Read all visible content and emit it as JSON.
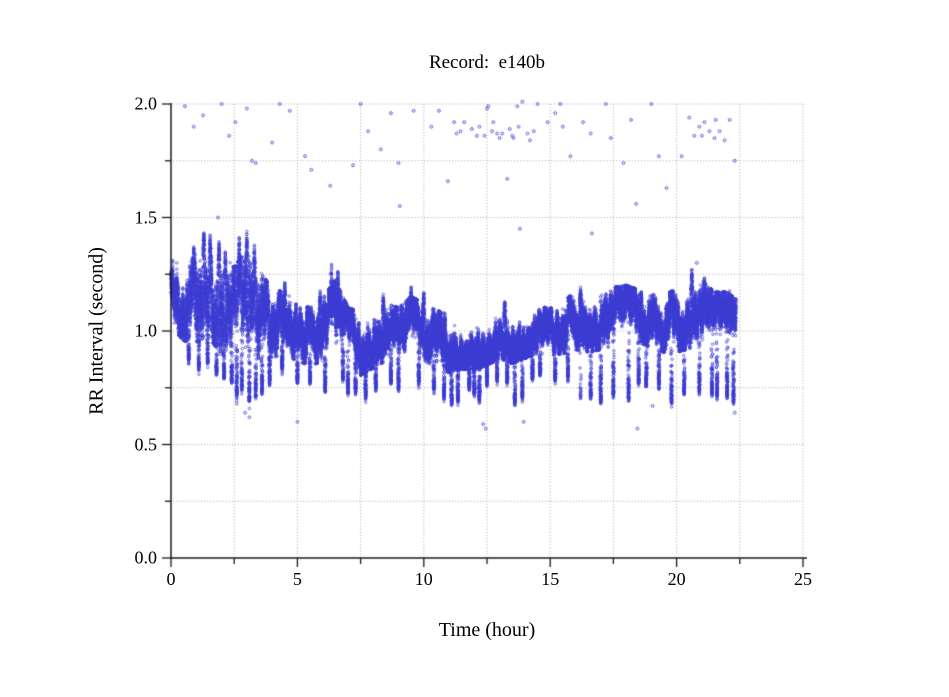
{
  "chart_data": {
    "type": "scatter",
    "title": "Record:  e140b",
    "xlabel": "Time (hour)",
    "ylabel": "RR Interval (second)",
    "xlim": [
      0,
      25
    ],
    "ylim": [
      0.0,
      2.0
    ],
    "data_end_hour": 22.35,
    "x_axis": {
      "ticks": [
        {
          "label": "0",
          "value": 0
        },
        {
          "label": "5",
          "value": 5
        },
        {
          "label": "10",
          "value": 10
        },
        {
          "label": "15",
          "value": 15
        },
        {
          "label": "20",
          "value": 20
        },
        {
          "label": "25",
          "value": 25
        }
      ],
      "minor_tick_step": 2.5,
      "grid_step": 2.5
    },
    "y_axis": {
      "ticks": [
        {
          "label": "0.0",
          "value": 0.0
        },
        {
          "label": "0.5",
          "value": 0.5
        },
        {
          "label": "1.0",
          "value": 1.0
        },
        {
          "label": "1.5",
          "value": 1.5
        },
        {
          "label": "2.0",
          "value": 2.0
        }
      ],
      "minor_tick_step": 0.25,
      "grid_step": 0.25
    },
    "grid": {
      "style": "dotted",
      "on": true
    },
    "legend": "none",
    "marker": {
      "shape": "open-circle",
      "radius_px": 1.25
    },
    "colors": {
      "marker": "#3C3CD2",
      "grid": "#A9A9A9",
      "axis": "#1A1A1A",
      "text": "#000000"
    },
    "band_profile": [
      [
        0.0,
        1.18,
        0.13
      ],
      [
        0.5,
        1.15,
        0.16
      ],
      [
        1.0,
        1.18,
        0.19
      ],
      [
        1.5,
        1.22,
        0.2
      ],
      [
        2.0,
        1.13,
        0.2
      ],
      [
        2.5,
        1.08,
        0.18
      ],
      [
        3.0,
        1.15,
        0.2
      ],
      [
        3.5,
        1.08,
        0.17
      ],
      [
        4.0,
        1.04,
        0.13
      ],
      [
        4.5,
        1.04,
        0.12
      ],
      [
        5.0,
        1.0,
        0.11
      ],
      [
        5.5,
        0.98,
        0.11
      ],
      [
        6.0,
        1.01,
        0.12
      ],
      [
        6.5,
        1.07,
        0.14
      ],
      [
        7.0,
        0.97,
        0.12
      ],
      [
        7.5,
        0.95,
        0.12
      ],
      [
        8.0,
        0.97,
        0.11
      ],
      [
        8.5,
        1.0,
        0.11
      ],
      [
        9.0,
        0.98,
        0.11
      ],
      [
        9.5,
        1.02,
        0.12
      ],
      [
        10.0,
        1.0,
        0.11
      ],
      [
        10.5,
        0.97,
        0.11
      ],
      [
        11.0,
        0.95,
        0.11
      ],
      [
        11.5,
        0.94,
        0.09
      ],
      [
        12.0,
        0.95,
        0.1
      ],
      [
        12.5,
        0.97,
        0.1
      ],
      [
        13.0,
        1.0,
        0.1
      ],
      [
        13.5,
        0.99,
        0.11
      ],
      [
        14.0,
        1.0,
        0.1
      ],
      [
        14.5,
        1.01,
        0.09
      ],
      [
        15.0,
        1.0,
        0.09
      ],
      [
        15.5,
        1.02,
        0.1
      ],
      [
        16.0,
        1.05,
        0.11
      ],
      [
        16.5,
        1.04,
        0.11
      ],
      [
        17.0,
        1.05,
        0.11
      ],
      [
        17.5,
        1.07,
        0.11
      ],
      [
        18.0,
        1.08,
        0.11
      ],
      [
        18.5,
        1.07,
        0.1
      ],
      [
        19.0,
        1.06,
        0.11
      ],
      [
        19.5,
        1.04,
        0.11
      ],
      [
        20.0,
        1.05,
        0.12
      ],
      [
        20.5,
        1.08,
        0.13
      ],
      [
        21.0,
        1.09,
        0.12
      ],
      [
        21.5,
        1.05,
        0.11
      ],
      [
        22.0,
        1.04,
        0.12
      ],
      [
        22.35,
        1.02,
        0.11
      ]
    ],
    "peaks": [
      [
        0.9,
        1.38
      ],
      [
        1.3,
        1.45
      ],
      [
        1.55,
        1.43
      ],
      [
        1.9,
        1.4
      ],
      [
        2.15,
        1.36
      ],
      [
        2.7,
        1.42
      ],
      [
        3.0,
        1.44
      ],
      [
        3.3,
        1.38
      ],
      [
        4.5,
        1.22
      ],
      [
        5.9,
        1.18
      ],
      [
        6.35,
        1.3
      ],
      [
        6.6,
        1.28
      ],
      [
        8.4,
        1.17
      ],
      [
        9.5,
        1.2
      ],
      [
        10.0,
        1.18
      ],
      [
        13.2,
        1.14
      ],
      [
        16.2,
        1.2
      ],
      [
        17.8,
        1.2
      ],
      [
        18.6,
        1.18
      ],
      [
        20.6,
        1.28
      ],
      [
        21.1,
        1.24
      ],
      [
        22.1,
        1.18
      ]
    ],
    "dips": [
      [
        0.7,
        0.88
      ],
      [
        1.1,
        0.84
      ],
      [
        1.45,
        0.86
      ],
      [
        1.8,
        0.82
      ],
      [
        2.1,
        0.8
      ],
      [
        2.4,
        0.78
      ],
      [
        2.6,
        0.72
      ],
      [
        2.8,
        0.75
      ],
      [
        3.1,
        0.7
      ],
      [
        3.35,
        0.72
      ],
      [
        3.6,
        0.74
      ],
      [
        3.9,
        0.78
      ],
      [
        4.4,
        0.84
      ],
      [
        5.0,
        0.78
      ],
      [
        5.5,
        0.78
      ],
      [
        6.1,
        0.75
      ],
      [
        6.8,
        0.8
      ],
      [
        7.0,
        0.74
      ],
      [
        7.3,
        0.74
      ],
      [
        7.7,
        0.72
      ],
      [
        8.1,
        0.75
      ],
      [
        8.7,
        0.78
      ],
      [
        9.0,
        0.76
      ],
      [
        9.8,
        0.78
      ],
      [
        10.4,
        0.74
      ],
      [
        10.8,
        0.71
      ],
      [
        11.1,
        0.69
      ],
      [
        11.35,
        0.7
      ],
      [
        11.8,
        0.76
      ],
      [
        12.0,
        0.73
      ],
      [
        12.2,
        0.7
      ],
      [
        12.5,
        0.78
      ],
      [
        12.9,
        0.79
      ],
      [
        13.3,
        0.78
      ],
      [
        13.6,
        0.69
      ],
      [
        13.9,
        0.71
      ],
      [
        14.3,
        0.8
      ],
      [
        14.6,
        0.81
      ],
      [
        15.2,
        0.79
      ],
      [
        15.7,
        0.8
      ],
      [
        16.2,
        0.71
      ],
      [
        16.6,
        0.71
      ],
      [
        17.0,
        0.69
      ],
      [
        17.5,
        0.73
      ],
      [
        18.1,
        0.71
      ],
      [
        18.5,
        0.78
      ],
      [
        18.8,
        0.77
      ],
      [
        19.3,
        0.76
      ],
      [
        19.8,
        0.69
      ],
      [
        20.3,
        0.73
      ],
      [
        20.9,
        0.74
      ],
      [
        21.4,
        0.73
      ],
      [
        21.6,
        0.72
      ],
      [
        22.0,
        0.72
      ],
      [
        22.25,
        0.7
      ]
    ],
    "outliers_high": [
      [
        0.55,
        1.99
      ],
      [
        0.9,
        1.9
      ],
      [
        1.27,
        1.95
      ],
      [
        1.86,
        1.5
      ],
      [
        2.0,
        2.0
      ],
      [
        2.3,
        1.86
      ],
      [
        2.55,
        1.92
      ],
      [
        3.0,
        1.98
      ],
      [
        3.2,
        1.75
      ],
      [
        3.35,
        1.74
      ],
      [
        4.0,
        1.83
      ],
      [
        4.3,
        2.0
      ],
      [
        4.7,
        1.97
      ],
      [
        5.3,
        1.77
      ],
      [
        5.55,
        1.71
      ],
      [
        6.3,
        1.64
      ],
      [
        7.2,
        1.73
      ],
      [
        7.5,
        2.0
      ],
      [
        7.8,
        1.88
      ],
      [
        8.3,
        1.8
      ],
      [
        8.7,
        1.96
      ],
      [
        9.0,
        1.74
      ],
      [
        9.05,
        1.55
      ],
      [
        9.6,
        1.97
      ],
      [
        10.3,
        1.9
      ],
      [
        10.6,
        1.97
      ],
      [
        10.95,
        1.66
      ],
      [
        11.2,
        1.92
      ],
      [
        11.3,
        1.87
      ],
      [
        11.45,
        1.88
      ],
      [
        11.6,
        1.92
      ],
      [
        11.9,
        1.89
      ],
      [
        12.1,
        1.86
      ],
      [
        12.2,
        1.9
      ],
      [
        12.4,
        1.86
      ],
      [
        12.5,
        1.98
      ],
      [
        12.55,
        1.99
      ],
      [
        12.7,
        1.88
      ],
      [
        12.75,
        1.92
      ],
      [
        12.9,
        1.87
      ],
      [
        13.0,
        1.85
      ],
      [
        13.1,
        1.87
      ],
      [
        13.3,
        1.67
      ],
      [
        13.4,
        1.89
      ],
      [
        13.5,
        1.86
      ],
      [
        13.55,
        1.85
      ],
      [
        13.7,
        1.99
      ],
      [
        13.75,
        1.9
      ],
      [
        13.8,
        1.45
      ],
      [
        13.9,
        2.01
      ],
      [
        14.1,
        1.87
      ],
      [
        14.2,
        1.84
      ],
      [
        14.35,
        1.88
      ],
      [
        14.5,
        2.0
      ],
      [
        14.9,
        1.92
      ],
      [
        15.2,
        1.96
      ],
      [
        15.4,
        2.0
      ],
      [
        15.5,
        1.9
      ],
      [
        15.8,
        1.77
      ],
      [
        16.3,
        1.92
      ],
      [
        16.6,
        1.87
      ],
      [
        16.65,
        1.43
      ],
      [
        17.2,
        2.0
      ],
      [
        17.4,
        1.85
      ],
      [
        17.9,
        1.74
      ],
      [
        18.2,
        1.93
      ],
      [
        18.4,
        1.56
      ],
      [
        19.0,
        2.0
      ],
      [
        19.3,
        1.77
      ],
      [
        19.6,
        1.63
      ],
      [
        20.2,
        1.77
      ],
      [
        20.5,
        1.94
      ],
      [
        20.7,
        1.86
      ],
      [
        20.8,
        1.3
      ],
      [
        20.9,
        1.9
      ],
      [
        21.0,
        1.86
      ],
      [
        21.1,
        1.92
      ],
      [
        21.3,
        1.88
      ],
      [
        21.5,
        1.85
      ],
      [
        21.55,
        1.93
      ],
      [
        21.7,
        1.88
      ],
      [
        21.9,
        1.84
      ],
      [
        22.1,
        1.93
      ],
      [
        22.3,
        1.75
      ]
    ],
    "outliers_low": [
      [
        2.6,
        0.68
      ],
      [
        2.93,
        0.64
      ],
      [
        3.1,
        0.62
      ],
      [
        5.0,
        0.6
      ],
      [
        12.35,
        0.59
      ],
      [
        12.45,
        0.57
      ],
      [
        13.95,
        0.6
      ],
      [
        18.45,
        0.57
      ],
      [
        19.05,
        0.67
      ],
      [
        22.3,
        0.64
      ]
    ],
    "render": {
      "seed": 7,
      "beats_divisor": 1800
    }
  }
}
